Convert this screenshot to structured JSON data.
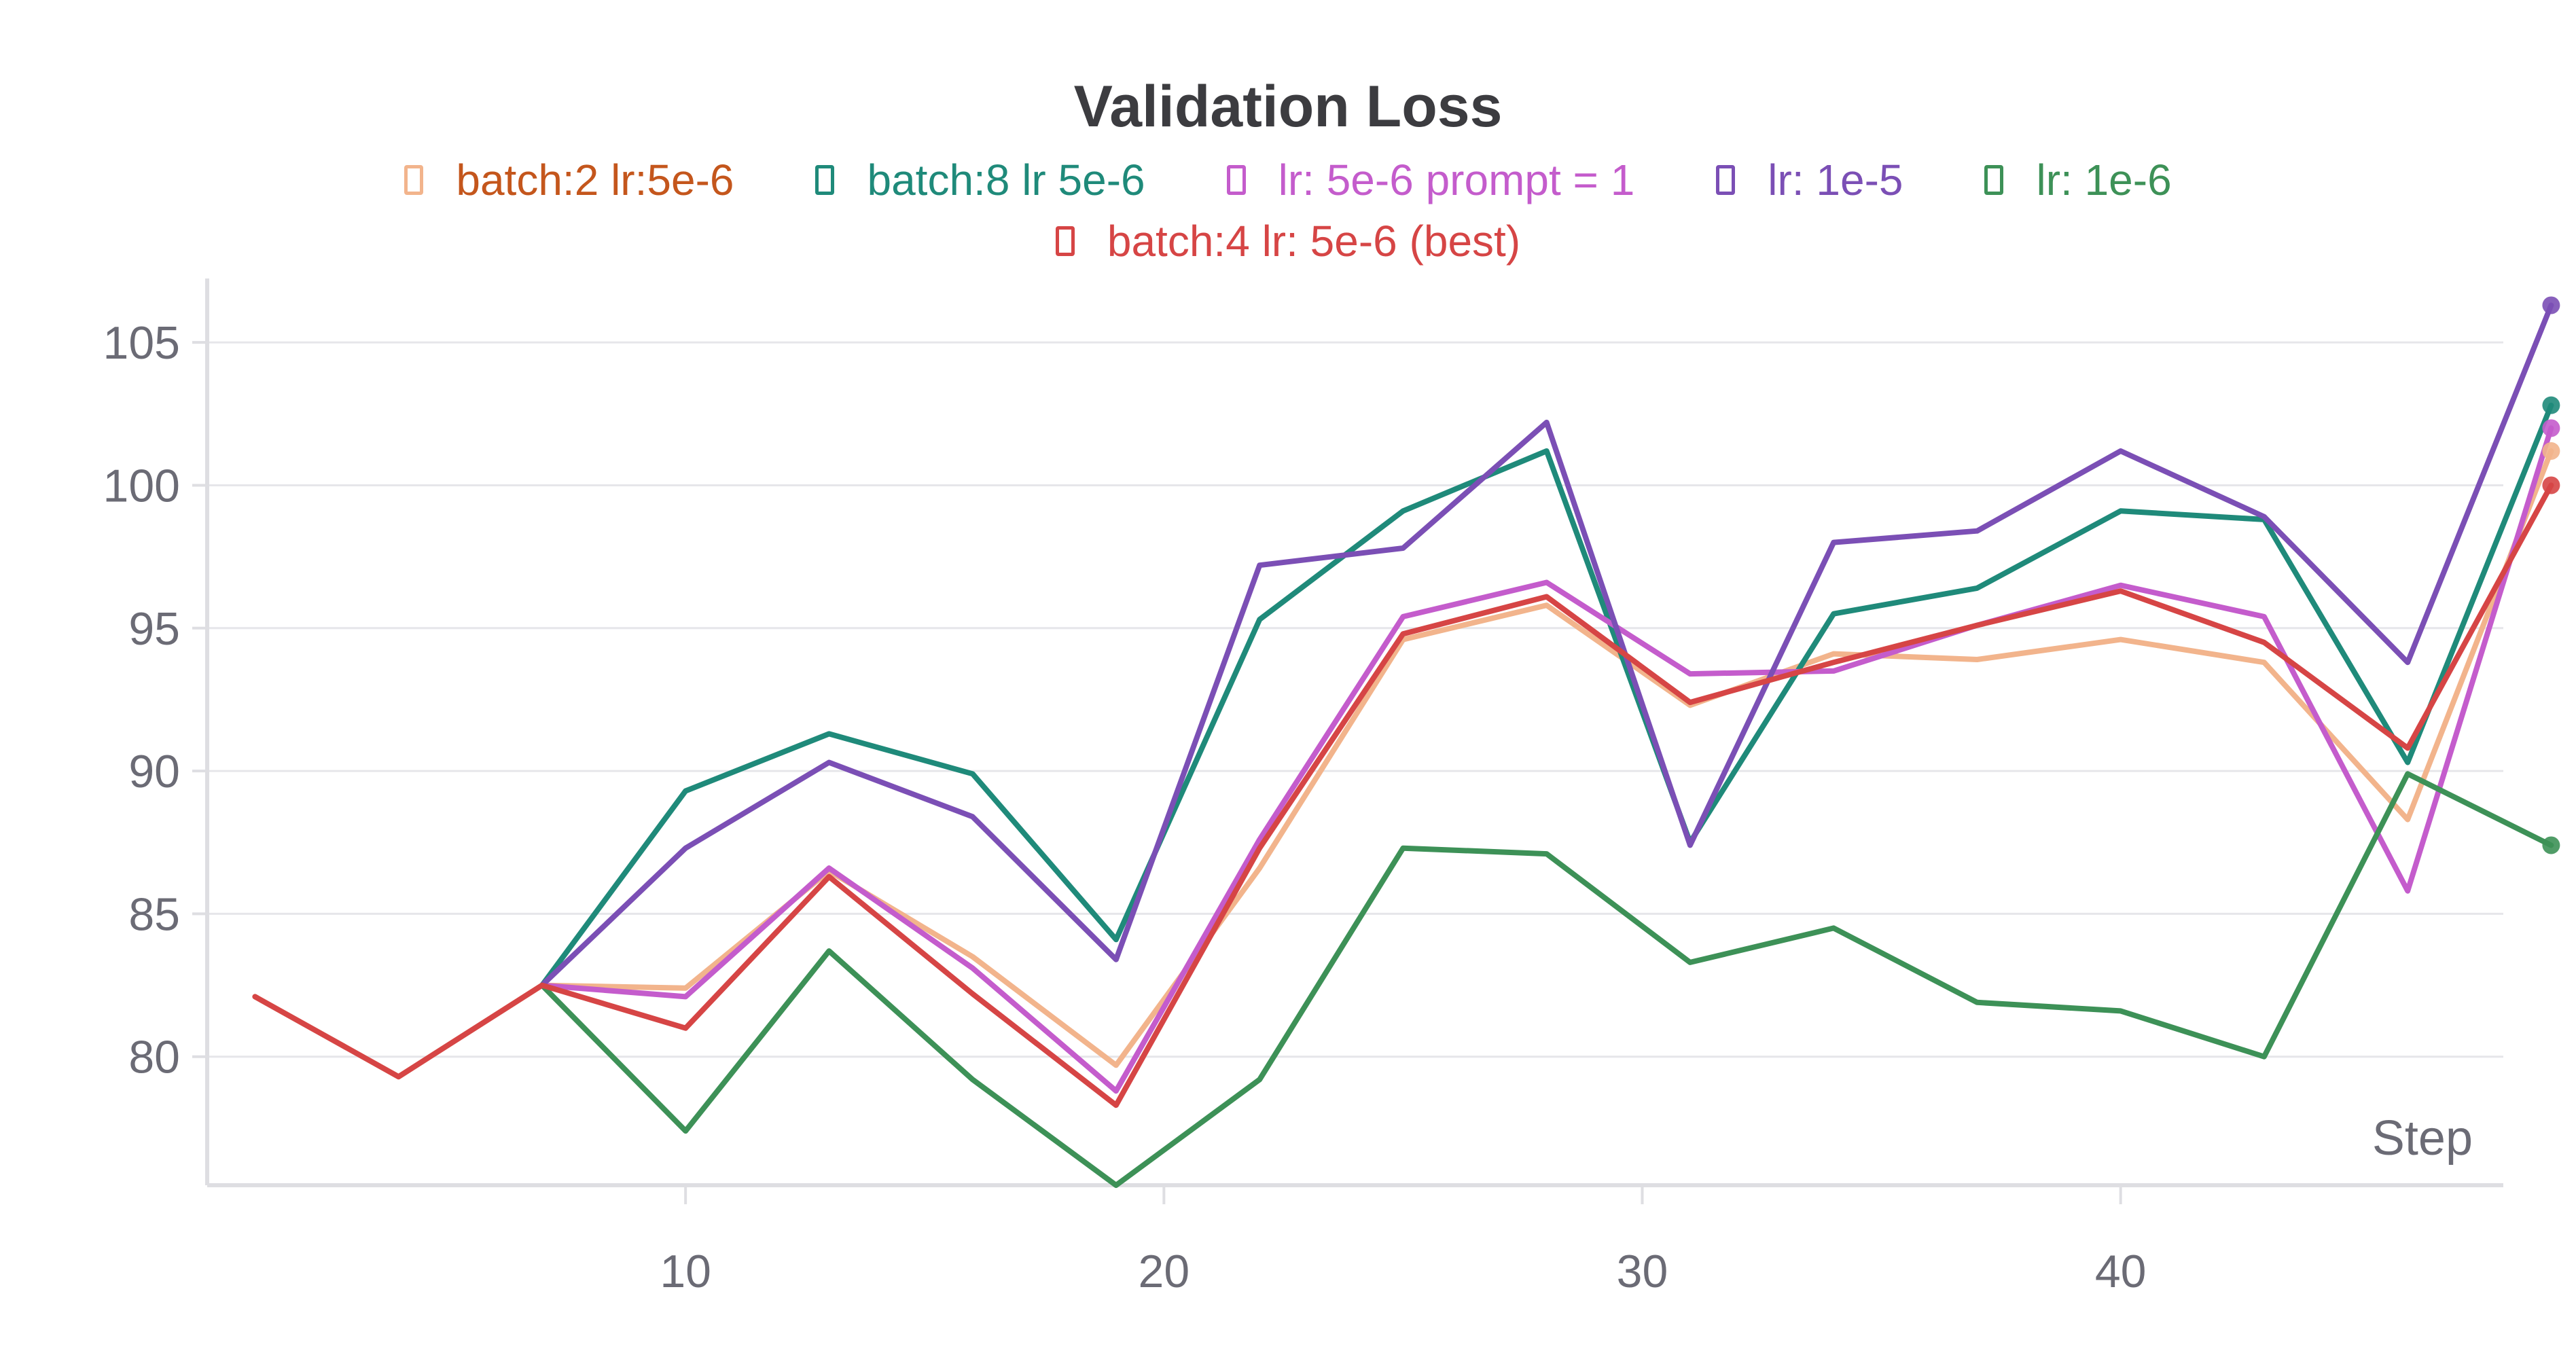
{
  "chart_data": {
    "type": "line",
    "title": "Validation Loss",
    "xlabel": "Step",
    "ylabel": "",
    "xlim": [
      0,
      48
    ],
    "ylim": [
      75.5,
      107
    ],
    "xticks": [
      10,
      20,
      30,
      40
    ],
    "yticks": [
      80,
      85,
      90,
      95,
      100,
      105
    ],
    "grid": true,
    "legend_position": "top-center",
    "x": [
      1,
      4,
      7,
      10,
      13,
      16,
      19,
      22,
      25,
      28,
      31,
      34,
      37,
      40,
      43,
      46,
      49
    ],
    "series": [
      {
        "name": "batch:2 lr:5e-6",
        "color": "#f2b48c",
        "legend_text_color": "#c4561c",
        "end_marker": true,
        "values": [
          82.1,
          79.3,
          82.5,
          82.4,
          86.5,
          83.5,
          79.7,
          86.6,
          94.6,
          95.8,
          92.3,
          94.1,
          93.9,
          94.6,
          93.8,
          88.3,
          101.2
        ]
      },
      {
        "name": "batch:8 lr 5e-6",
        "color": "#1f8a7a",
        "legend_text_color": "#1f8a7a",
        "end_marker": true,
        "values": [
          null,
          null,
          82.5,
          89.3,
          91.3,
          89.9,
          84.1,
          95.3,
          99.1,
          101.2,
          87.5,
          95.5,
          96.4,
          99.1,
          98.8,
          90.3,
          102.8
        ]
      },
      {
        "name": "lr: 5e-6 prompt = 1",
        "color": "#c45ccc",
        "legend_text_color": "#c45ccc",
        "end_marker": true,
        "values": [
          null,
          null,
          82.5,
          82.1,
          86.6,
          83.1,
          78.8,
          87.6,
          95.4,
          96.6,
          93.4,
          93.5,
          95.1,
          96.5,
          95.4,
          85.8,
          102.0
        ]
      },
      {
        "name": "lr: 1e-5",
        "color": "#7b4fb5",
        "legend_text_color": "#7b4fb5",
        "end_marker": true,
        "values": [
          null,
          null,
          82.5,
          87.3,
          90.3,
          88.4,
          83.4,
          97.2,
          97.8,
          102.2,
          87.4,
          98.0,
          98.4,
          101.2,
          98.9,
          93.8,
          106.3
        ]
      },
      {
        "name": "lr: 1e-6",
        "color": "#3d9157",
        "legend_text_color": "#3d9157",
        "end_marker": true,
        "values": [
          null,
          null,
          82.5,
          77.4,
          83.7,
          79.2,
          75.5,
          79.2,
          87.3,
          87.1,
          83.3,
          84.5,
          81.9,
          81.6,
          80.0,
          89.9,
          87.4
        ]
      },
      {
        "name": "batch:4 lr: 5e-6 (best)",
        "color": "#d64545",
        "legend_text_color": "#d64545",
        "end_marker": true,
        "values": [
          82.1,
          79.3,
          82.5,
          81.0,
          86.3,
          82.2,
          78.3,
          87.3,
          94.8,
          96.1,
          92.4,
          93.8,
          95.1,
          96.3,
          94.5,
          90.8,
          100.0
        ]
      }
    ]
  }
}
